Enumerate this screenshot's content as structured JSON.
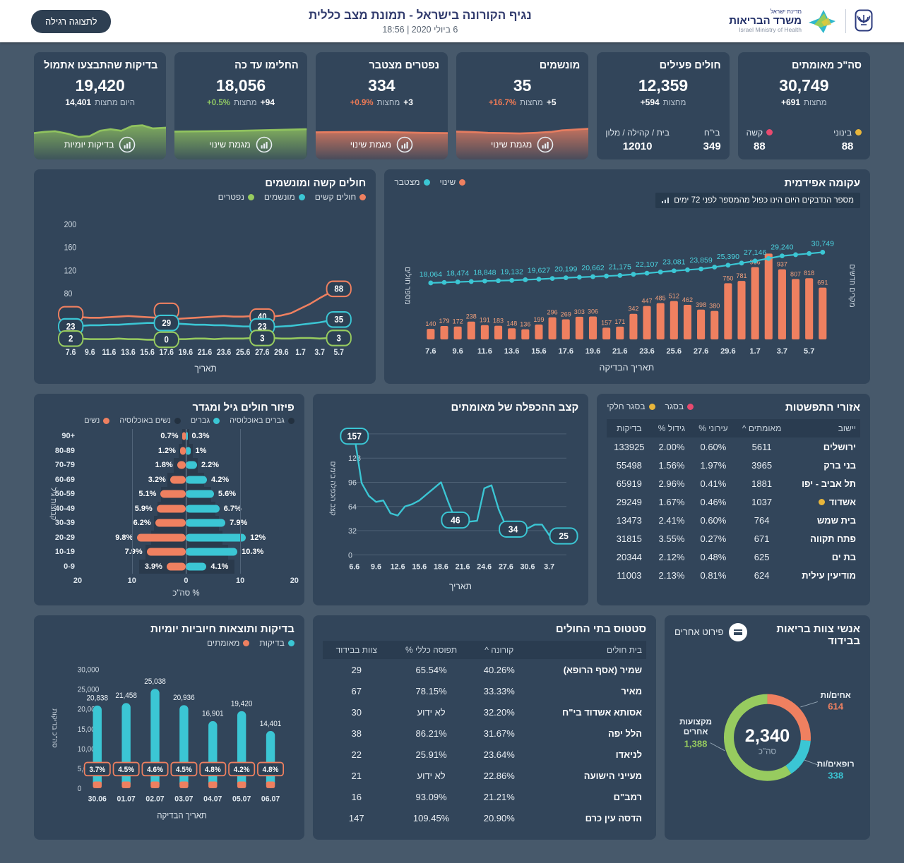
{
  "header": {
    "title": "נגיף הקורונה בישראל - תמונת מצב כללית",
    "datetime": "6 ביולי 2020 | 18:56",
    "view_button": "לתצוגה רגילה",
    "logo": {
      "line1": "מדינת ישראל",
      "line2": "משרד הבריאות",
      "line3": "Israel Ministry of Health"
    }
  },
  "colors": {
    "orange": "#ef8060",
    "teal": "#3bc6d4",
    "green": "#97cb5f",
    "red": "#e84a6f",
    "yellow": "#e9b63b",
    "panel": "#32455a",
    "background": "#47596b"
  },
  "cards": [
    {
      "title": "סה\"כ מאומתים",
      "value": "30,749",
      "delta_num": "+691",
      "delta_text": "מחצות",
      "substats": [
        {
          "label": "בינוני",
          "value": "88",
          "dot": "yellow"
        },
        {
          "label": "קשה",
          "value": "88",
          "dot": "red"
        }
      ]
    },
    {
      "title": "חולים פעילים",
      "value": "12,359",
      "delta_num": "+594",
      "delta_text": "מחצות",
      "substats": [
        {
          "label": "בי\"ח",
          "value": "349"
        },
        {
          "label": "בית / קהילה / מלון",
          "value": "12010"
        }
      ]
    },
    {
      "title": "מונשמים",
      "value": "35",
      "delta_num": "+5",
      "delta_text": "מחצות",
      "delta_pct": "+16.7%",
      "pct_class": "neg",
      "footer": "מגמת שינוי",
      "spark_color": "orange",
      "spark_points": [
        [
          0,
          12
        ],
        [
          12,
          12.3
        ],
        [
          24,
          12.8
        ],
        [
          36,
          13
        ],
        [
          48,
          13.2
        ],
        [
          60,
          12.8
        ],
        [
          72,
          12.2
        ],
        [
          80,
          11.2
        ],
        [
          88,
          10.8
        ],
        [
          100,
          10.2
        ]
      ]
    },
    {
      "title": "נפטרים מצטבר",
      "value": "334",
      "delta_num": "+3",
      "delta_text": "מחצות",
      "delta_pct": "+0.9%",
      "pct_class": "neg",
      "footer": "מגמת שינוי",
      "spark_color": "orange",
      "spark_points": [
        [
          0,
          12.5
        ],
        [
          20,
          12.3
        ],
        [
          40,
          12.2
        ],
        [
          60,
          12.4
        ],
        [
          80,
          12.8
        ],
        [
          100,
          13
        ]
      ]
    },
    {
      "title": "החלימו עד כה",
      "value": "18,056",
      "delta_num": "+94",
      "delta_text": "מחצות",
      "delta_pct": "+0.5%",
      "pct_class": "pos",
      "footer": "מגמת שינוי",
      "spark_color": "green",
      "spark_points": [
        [
          0,
          12
        ],
        [
          25,
          11.8
        ],
        [
          50,
          11.5
        ],
        [
          75,
          11
        ],
        [
          100,
          10.5
        ]
      ]
    },
    {
      "title": "בדיקות שהתבצעו אתמול",
      "value": "19,420",
      "delta_num": "14,401",
      "delta_text": "היום מחצות",
      "footer": "בדיקות יומיות",
      "spark_color": "green",
      "spark_points": [
        [
          0,
          13
        ],
        [
          8,
          12.2
        ],
        [
          16,
          11.8
        ],
        [
          26,
          13.5
        ],
        [
          34,
          15.5
        ],
        [
          42,
          15
        ],
        [
          50,
          11.5
        ],
        [
          58,
          10.5
        ],
        [
          66,
          11.5
        ],
        [
          74,
          8.5
        ],
        [
          82,
          8
        ],
        [
          90,
          10
        ],
        [
          100,
          9.5
        ]
      ]
    }
  ],
  "epidemic": {
    "title": "עקומה אפידמית",
    "note": "מספר הנדבקים היום הינו כפול מהמספר לפני 72 ימים",
    "legend": [
      {
        "label": "שינוי",
        "color": "orange"
      },
      {
        "label": "מצטבר",
        "color": "teal"
      }
    ],
    "xlabel": "תאריך הבדיקה",
    "ylabel_left": "מספר חולים",
    "ylabel_right": "מקרים חדשים",
    "x_ticks": [
      "7.6",
      "9.6",
      "11.6",
      "13.6",
      "15.6",
      "17.6",
      "19.6",
      "21.6",
      "23.6",
      "25.6",
      "27.6",
      "29.6",
      "1.7",
      "3.7",
      "5.7"
    ],
    "chart_data": {
      "type": "bar+line",
      "bars": [
        140,
        179,
        172,
        238,
        191,
        183,
        148,
        136,
        199,
        296,
        269,
        303,
        306,
        157,
        171,
        342,
        447,
        485,
        512,
        462,
        398,
        380,
        750,
        781,
        966,
        1146,
        937,
        807,
        818,
        691
      ],
      "bar_labels": [
        "140",
        "179",
        "172",
        "238",
        "191",
        "183",
        "148",
        "136",
        "199",
        "296",
        "269",
        "303",
        "306",
        "157",
        "171",
        "342",
        "447",
        "485",
        "512",
        "462",
        "398",
        "380",
        "750",
        "781",
        "966",
        "",
        "937",
        "807",
        "818",
        "691"
      ],
      "line": [
        18064,
        18270,
        18474,
        18660,
        18848,
        18990,
        19132,
        19380,
        19627,
        19910,
        20199,
        20430,
        20662,
        20920,
        21175,
        21640,
        22107,
        22590,
        23081,
        23470,
        23859,
        24620,
        25390,
        26270,
        27146,
        28190,
        29240,
        29740,
        30210,
        30749
      ],
      "line_labels": {
        "0": "18,064",
        "2": "18,474",
        "4": "18,848",
        "6": "19,132",
        "8": "19,627",
        "10": "20,199",
        "12": "20,662",
        "14": "21,175",
        "16": "22,107",
        "18": "23,081",
        "20": "23,859",
        "22": "25,390",
        "24": "27,146",
        "26": "29,240",
        "29": "30,749"
      }
    }
  },
  "severe": {
    "title": "חולים קשה ומונשמים",
    "legend": [
      {
        "label": "חולים קשים",
        "color": "orange"
      },
      {
        "label": "מונשמים",
        "color": "teal"
      },
      {
        "label": "נפטרים",
        "color": "green"
      }
    ],
    "xlabel": "תאריך",
    "x_ticks": [
      "7.6",
      "9.6",
      "11.6",
      "13.6",
      "15.6",
      "17.6",
      "19.6",
      "21.6",
      "23.6",
      "25.6",
      "27.6",
      "29.6",
      "1.7",
      "3.7",
      "5.7"
    ],
    "y_ticks": [
      40,
      80,
      120,
      160,
      200
    ],
    "chart_data": {
      "type": "line",
      "series": [
        {
          "name": "חולים קשים",
          "color": "orange",
          "values": [
            40,
            39,
            38,
            38,
            39,
            40,
            41,
            40,
            39,
            38,
            37,
            36,
            37,
            38,
            39,
            40,
            41,
            40,
            40,
            41,
            40,
            40,
            42,
            46,
            54,
            62,
            72,
            81,
            88
          ]
        },
        {
          "name": "מונשמים",
          "color": "teal",
          "values": [
            23,
            24,
            25,
            25,
            26,
            26,
            27,
            28,
            29,
            29,
            29,
            28,
            27,
            26,
            26,
            25,
            25,
            24,
            23,
            23,
            23,
            22,
            23,
            24,
            26,
            28,
            30,
            33,
            35
          ]
        },
        {
          "name": "נפטרים",
          "color": "green",
          "values": [
            2,
            2,
            1,
            1,
            1,
            2,
            1,
            1,
            0,
            0,
            0,
            1,
            1,
            2,
            2,
            1,
            2,
            2,
            2,
            3,
            3,
            3,
            2,
            2,
            3,
            3,
            2,
            3,
            3
          ]
        }
      ],
      "callouts": [
        {
          "series": 1,
          "index": 0,
          "label": "23"
        },
        {
          "series": 2,
          "index": 0,
          "label": "2"
        },
        {
          "series": 1,
          "index": 10,
          "label": "29"
        },
        {
          "series": 2,
          "index": 10,
          "label": "0"
        },
        {
          "series": 0,
          "index": 20,
          "label": "40"
        },
        {
          "series": 1,
          "index": 20,
          "label": "23"
        },
        {
          "series": 2,
          "index": 20,
          "label": "3"
        },
        {
          "series": 0,
          "index": 28,
          "label": "88"
        },
        {
          "series": 1,
          "index": 28,
          "label": "35"
        },
        {
          "series": 2,
          "index": 28,
          "label": "3"
        }
      ],
      "ylim": [
        0,
        215
      ]
    }
  },
  "pyramid": {
    "title": "פיזור חולים גיל ומגדר",
    "legend": [
      {
        "label": "גברים באוכלוסיה",
        "color": "dark"
      },
      {
        "label": "גברים",
        "color": "teal"
      },
      {
        "label": "נשים באוכלוסיה",
        "color": "dark"
      },
      {
        "label": "נשים",
        "color": "orange"
      }
    ],
    "ylabel": "קבוצות גיל",
    "xlabel": "% סה\"כ",
    "x_ticks": [
      "20",
      "10",
      "0",
      "10",
      "20"
    ],
    "chart_data": {
      "type": "pyramid",
      "ages": [
        "90+",
        "80-89",
        "70-79",
        "60-69",
        "50-59",
        "40-49",
        "30-39",
        "20-29",
        "10-19",
        "0-9"
      ],
      "women": [
        0.7,
        1.2,
        1.8,
        3.2,
        5.1,
        5.9,
        6.2,
        9.8,
        7.9,
        3.9
      ],
      "men": [
        0.3,
        1,
        2.2,
        4.2,
        5.6,
        6.7,
        7.9,
        12,
        10.3,
        4.1
      ],
      "women_labels": [
        "0.7%",
        "1.2%",
        "1.8%",
        "3.2%",
        "5.1%",
        "5.9%",
        "6.2%",
        "9.8%",
        "7.9%",
        "3.9%"
      ],
      "men_labels": [
        "0.3%",
        "1%",
        "2.2%",
        "4.2%",
        "5.6%",
        "6.7%",
        "7.9%",
        "12%",
        "10.3%",
        "4.1%"
      ],
      "pop_women": [
        0.7,
        1.5,
        2.5,
        3.7,
        5.0,
        5.8,
        6.4,
        7.0,
        8.2,
        9.4
      ],
      "pop_men": [
        0.7,
        1.3,
        2.3,
        3.6,
        5.0,
        5.9,
        6.6,
        7.3,
        8.5,
        9.7
      ]
    }
  },
  "doubling": {
    "title": "קצב ההכפלה של מאומתים",
    "ylabel": "קצב הכפלה בימים",
    "xlabel": "תאריך",
    "x_ticks": [
      "6.6",
      "9.6",
      "12.6",
      "15.6",
      "18.6",
      "21.6",
      "24.6",
      "27.6",
      "30.6",
      "3.7"
    ],
    "y_ticks": [
      0,
      32,
      64,
      96,
      128,
      160
    ],
    "chart_data": {
      "type": "line",
      "values": [
        157,
        95,
        78,
        70,
        72,
        55,
        52,
        64,
        67,
        72,
        80,
        88,
        96,
        70,
        46,
        44,
        44,
        45,
        88,
        92,
        60,
        38,
        34,
        33,
        35,
        40,
        40,
        26,
        22,
        25
      ],
      "callouts": [
        {
          "index": 0,
          "label": "157"
        },
        {
          "index": 14,
          "label": "46"
        },
        {
          "index": 22,
          "label": "34"
        },
        {
          "index": 29,
          "label": "25"
        }
      ]
    }
  },
  "spread": {
    "title": "אזורי התפשטות",
    "legend": [
      {
        "label": "בסגר",
        "color": "red"
      },
      {
        "label": "בסגר חלקי",
        "color": "yellow"
      }
    ],
    "headers": [
      "יישוב",
      "מאומתים ^",
      "עירוני %",
      "גידול %",
      "בדיקות"
    ],
    "rows": [
      {
        "name": "ירושלים",
        "confirmed": "5611",
        "urban": "0.60%",
        "growth": "2.00%",
        "tests": "133925",
        "dot": null
      },
      {
        "name": "בני ברק",
        "confirmed": "3965",
        "urban": "1.97%",
        "growth": "1.56%",
        "tests": "55498",
        "dot": null
      },
      {
        "name": "תל אביב - יפו",
        "confirmed": "1881",
        "urban": "0.41%",
        "growth": "2.96%",
        "tests": "65919",
        "dot": null
      },
      {
        "name": "אשדוד",
        "confirmed": "1037",
        "urban": "0.46%",
        "growth": "1.67%",
        "tests": "29249",
        "dot": "yellow"
      },
      {
        "name": "בית שמש",
        "confirmed": "764",
        "urban": "0.60%",
        "growth": "2.41%",
        "tests": "13473",
        "dot": null
      },
      {
        "name": "פתח תקווה",
        "confirmed": "671",
        "urban": "0.27%",
        "growth": "3.55%",
        "tests": "31815",
        "dot": null
      },
      {
        "name": "בת ים",
        "confirmed": "625",
        "urban": "0.48%",
        "growth": "2.12%",
        "tests": "20344",
        "dot": null
      },
      {
        "name": "מודיעין עילית",
        "confirmed": "624",
        "urban": "0.81%",
        "growth": "2.13%",
        "tests": "11003",
        "dot": null
      }
    ]
  },
  "tests_chart": {
    "title": "בדיקות ותוצאות חיוביות יומיות",
    "legend": [
      {
        "label": "בדיקות",
        "color": "teal"
      },
      {
        "label": "מאומתים",
        "color": "orange"
      }
    ],
    "ylabel": "סה\"כ בדיקות",
    "xlabel": "תאריך הבדיקה",
    "y_ticks": [
      "0",
      "5,000",
      "10,000",
      "15,000",
      "20,000",
      "25,000",
      "30,000"
    ],
    "chart_data": {
      "type": "bar",
      "categories": [
        "30.06",
        "01.07",
        "02.07",
        "03.07",
        "04.07",
        "05.07",
        "06.07"
      ],
      "values": [
        20838,
        21458,
        25038,
        20936,
        16901,
        19420,
        14401
      ],
      "value_labels": [
        "20,838",
        "21,458",
        "25,038",
        "20,936",
        "16,901",
        "19,420",
        "14,401"
      ],
      "positive_pct": [
        "3.7%",
        "4.5%",
        "4.6%",
        "4.5%",
        "4.8%",
        "4.2%",
        "4.8%"
      ],
      "ylim": [
        0,
        31000
      ]
    }
  },
  "hospitals": {
    "title": "סטטוס בתי החולים",
    "headers": [
      "בית חולים",
      "קורונה ^",
      "תפוסה כללי %",
      "צוות בבידוד"
    ],
    "rows": [
      {
        "name": "שמיר (אסף הרופא)",
        "corona": "40.26%",
        "occupancy": "65.54%",
        "staff": "29"
      },
      {
        "name": "מאיר",
        "corona": "33.33%",
        "occupancy": "78.15%",
        "staff": "67"
      },
      {
        "name": "אסותא אשדוד בי\"ח",
        "corona": "32.20%",
        "occupancy": "לא ידוע",
        "staff": "30"
      },
      {
        "name": "הלל יפה",
        "corona": "31.67%",
        "occupancy": "86.21%",
        "staff": "38"
      },
      {
        "name": "לניאדו",
        "corona": "23.64%",
        "occupancy": "25.91%",
        "staff": "22"
      },
      {
        "name": "מעייני הישועה",
        "corona": "22.86%",
        "occupancy": "לא ידוע",
        "staff": "21"
      },
      {
        "name": "רמב\"ם",
        "corona": "21.21%",
        "occupancy": "93.09%",
        "staff": "16"
      },
      {
        "name": "הדסה עין כרם",
        "corona": "20.90%",
        "occupancy": "109.45%",
        "staff": "147"
      }
    ]
  },
  "donut": {
    "title": "אנשי צוות בריאות בבידוד",
    "button": "פירוט אחרים",
    "total": "2,340",
    "total_label": "סה\"כ",
    "chart_data": {
      "type": "pie",
      "segments": [
        {
          "label": "אחים/ות",
          "value": 614,
          "display": "614",
          "color": "orange"
        },
        {
          "label": "רופאים/ות",
          "value": 338,
          "display": "338",
          "color": "teal"
        },
        {
          "label": "מקצועות אחרים",
          "value": 1388,
          "display": "1,388",
          "color": "green"
        }
      ]
    }
  }
}
